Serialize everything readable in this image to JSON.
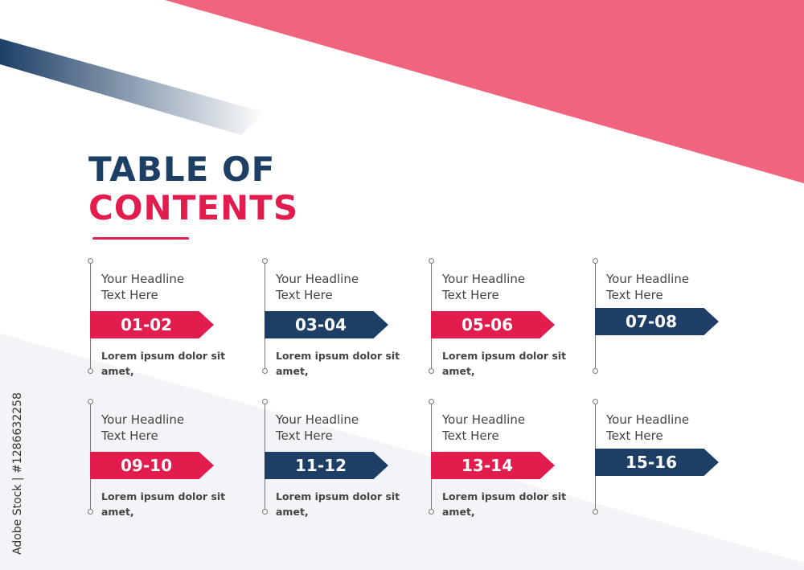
{
  "title": {
    "line1": "TABLE OF",
    "line2": "CONTENTS"
  },
  "items": [
    {
      "headline": [
        "Your Headline",
        "Text Here"
      ],
      "pages": "01-02",
      "body": [
        "Lorem ipsum dolor sit",
        "amet,"
      ]
    },
    {
      "headline": [
        "Your Headline",
        "Text Here"
      ],
      "pages": "03-04",
      "body": [
        "Lorem ipsum dolor sit",
        "amet,"
      ]
    },
    {
      "headline": [
        "Your Headline",
        "Text Here"
      ],
      "pages": "05-06",
      "body": [
        "Lorem ipsum dolor sit",
        "amet,"
      ]
    },
    {
      "headline": [
        "Your Headline",
        "Text Here"
      ],
      "pages": "07-08",
      "body": []
    },
    {
      "headline": [
        "Your Headline",
        "Text Here"
      ],
      "pages": "09-10",
      "body": [
        "Lorem ipsum dolor sit",
        "amet,"
      ]
    },
    {
      "headline": [
        "Your Headline",
        "Text Here"
      ],
      "pages": "11-12",
      "body": [
        "Lorem ipsum dolor sit",
        "amet,"
      ]
    },
    {
      "headline": [
        "Your Headline",
        "Text Here"
      ],
      "pages": "13-14",
      "body": [
        "Lorem ipsum dolor sit",
        "amet,"
      ]
    },
    {
      "headline": [
        "Your Headline",
        "Text Here"
      ],
      "pages": "15-16",
      "body": []
    }
  ],
  "watermark": "Adobe Stock | #1286632258"
}
